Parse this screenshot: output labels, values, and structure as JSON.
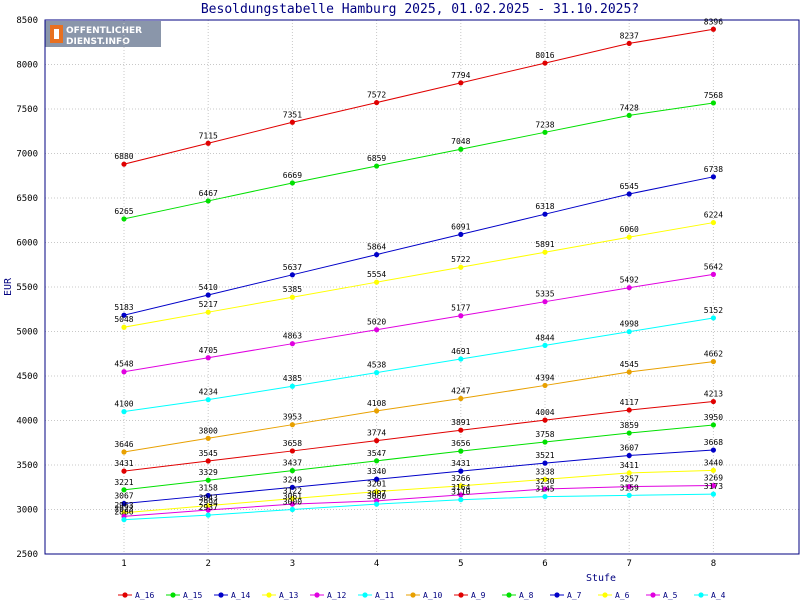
{
  "chart_data": {
    "type": "line",
    "title": "Besoldungstabelle Hamburg 2025, 01.02.2025 - 31.10.2025?",
    "xlabel": "Stufe",
    "ylabel": "EUR",
    "x": [
      1,
      2,
      3,
      4,
      5,
      6,
      7,
      8
    ],
    "ylim": [
      2500,
      8500
    ],
    "yticks": [
      2500,
      3000,
      3500,
      4000,
      4500,
      5000,
      5500,
      6000,
      6500,
      7000,
      7500,
      8000,
      8500
    ],
    "grid": true,
    "legend_position": "bottom",
    "series": [
      {
        "name": "A_16",
        "color": "#e00000",
        "values": [
          6880,
          7115,
          7351,
          7572,
          7794,
          8016,
          8237,
          8396
        ]
      },
      {
        "name": "A_15",
        "color": "#00e000",
        "values": [
          6265,
          6467,
          6669,
          6859,
          7048,
          7238,
          7428,
          7568
        ]
      },
      {
        "name": "A_14",
        "color": "#0000c8",
        "values": [
          5183,
          5410,
          5637,
          5864,
          6091,
          6318,
          6545,
          6738
        ]
      },
      {
        "name": "A_13",
        "color": "#ffff00",
        "values": [
          5048,
          5217,
          5385,
          5554,
          5722,
          5891,
          6060,
          6224
        ]
      },
      {
        "name": "A_12",
        "color": "#e000e0",
        "values": [
          4548,
          4705,
          4863,
          5020,
          5177,
          5335,
          5492,
          5642
        ]
      },
      {
        "name": "A_11",
        "color": "#00ffff",
        "values": [
          4100,
          4234,
          4385,
          4538,
          4691,
          4844,
          4998,
          5152
        ]
      },
      {
        "name": "A_10",
        "color": "#e8a000",
        "values": [
          3646,
          3800,
          3953,
          4108,
          4247,
          4394,
          4545,
          4662
        ]
      },
      {
        "name": "A_9",
        "color": "#e00000",
        "values": [
          3431,
          3545,
          3658,
          3774,
          3891,
          4004,
          4117,
          4213
        ]
      },
      {
        "name": "A_8",
        "color": "#00e000",
        "values": [
          3221,
          3329,
          3437,
          3547,
          3656,
          3758,
          3859,
          3950
        ]
      },
      {
        "name": "A_7",
        "color": "#0000c8",
        "values": [
          3067,
          3158,
          3249,
          3340,
          3431,
          3521,
          3607,
          3668
        ]
      },
      {
        "name": "A_6",
        "color": "#ffff00",
        "values": [
          2963,
          3043,
          3122,
          3201,
          3266,
          3338,
          3411,
          3440
        ]
      },
      {
        "name": "A_5",
        "color": "#e000e0",
        "values": [
          2923,
          2994,
          3061,
          3097,
          3164,
          3230,
          3257,
          3269
        ]
      },
      {
        "name": "A_4",
        "color": "#00ffff",
        "values": [
          2886,
          2937,
          3000,
          3060,
          3110,
          3145,
          3159,
          3173
        ]
      }
    ]
  },
  "logo": {
    "line1": "OFFENTLICHER",
    "line2": "DIENST.INFO"
  }
}
